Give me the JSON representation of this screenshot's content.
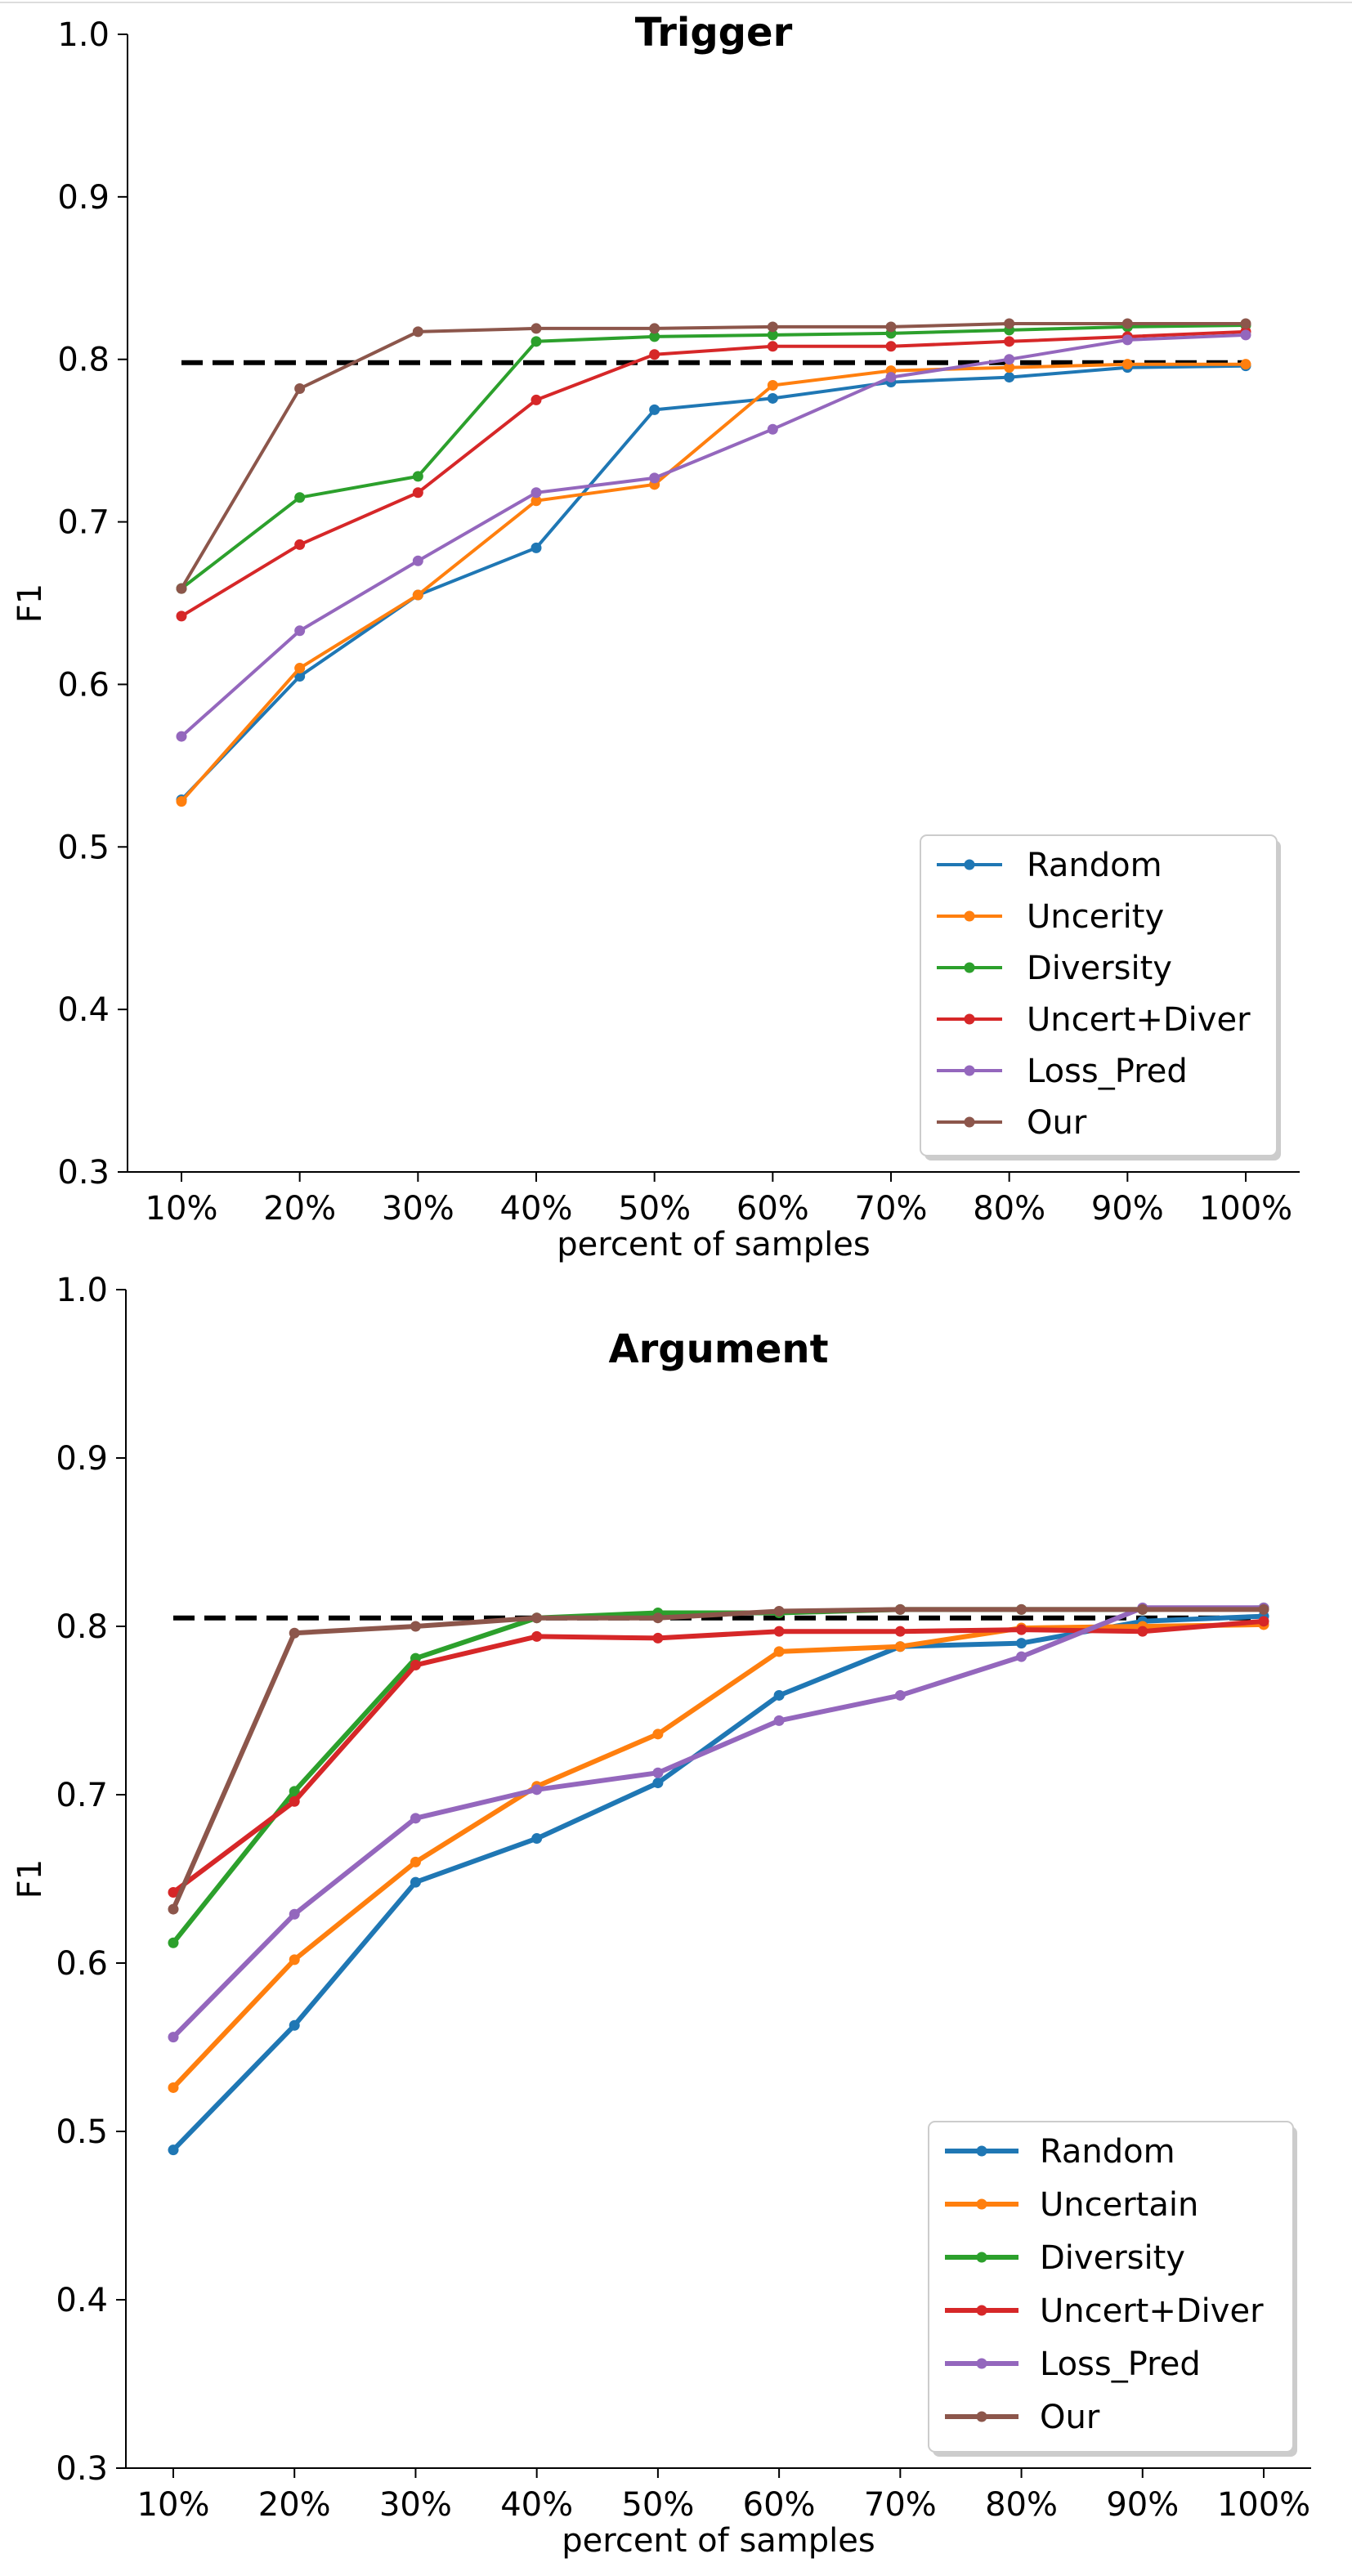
{
  "chart_data": [
    {
      "type": "line",
      "title": "Trigger",
      "xlabel": "percent of samples",
      "ylabel": "F1",
      "ylim": [
        0.3,
        1.0
      ],
      "yticks": [
        "0.3",
        "0.4",
        "0.5",
        "0.6",
        "0.7",
        "0.8",
        "0.9",
        "1.0"
      ],
      "categories": [
        "10%",
        "20%",
        "30%",
        "40%",
        "50%",
        "60%",
        "70%",
        "80%",
        "90%",
        "100%"
      ],
      "reference_line": 0.798,
      "legend_position": "lower-right",
      "series": [
        {
          "name": "Random",
          "color": "#1f77b4",
          "values": [
            0.529,
            0.605,
            0.655,
            0.684,
            0.769,
            0.776,
            0.786,
            0.789,
            0.795,
            0.796
          ]
        },
        {
          "name": "Uncerity",
          "color": "#ff7f0e",
          "values": [
            0.528,
            0.61,
            0.655,
            0.713,
            0.723,
            0.784,
            0.793,
            0.795,
            0.797,
            0.797
          ]
        },
        {
          "name": "Diversity",
          "color": "#2ca02c",
          "values": [
            0.659,
            0.715,
            0.728,
            0.811,
            0.814,
            0.815,
            0.816,
            0.818,
            0.82,
            0.821
          ]
        },
        {
          "name": "Uncert+Diver",
          "color": "#d62728",
          "values": [
            0.642,
            0.686,
            0.718,
            0.775,
            0.803,
            0.808,
            0.808,
            0.811,
            0.814,
            0.817
          ]
        },
        {
          "name": "Loss_Pred",
          "color": "#9467bd",
          "values": [
            0.568,
            0.633,
            0.676,
            0.718,
            0.727,
            0.757,
            0.789,
            0.8,
            0.812,
            0.815
          ]
        },
        {
          "name": "Our",
          "color": "#8c564b",
          "values": [
            0.659,
            0.782,
            0.817,
            0.819,
            0.819,
            0.82,
            0.82,
            0.822,
            0.822,
            0.822
          ]
        }
      ]
    },
    {
      "type": "line",
      "title": "Argument",
      "xlabel": "percent of samples",
      "ylabel": "F1",
      "ylim": [
        0.3,
        1.0
      ],
      "yticks": [
        "0.3",
        "0.4",
        "0.5",
        "0.6",
        "0.7",
        "0.8",
        "0.9",
        "1.0"
      ],
      "categories": [
        "10%",
        "20%",
        "30%",
        "40%",
        "50%",
        "60%",
        "70%",
        "80%",
        "90%",
        "100%"
      ],
      "reference_line": 0.805,
      "legend_position": "lower-right",
      "series": [
        {
          "name": "Random",
          "color": "#1f77b4",
          "values": [
            0.489,
            0.563,
            0.648,
            0.674,
            0.707,
            0.759,
            0.788,
            0.79,
            0.803,
            0.806
          ]
        },
        {
          "name": "Uncertain",
          "color": "#ff7f0e",
          "values": [
            0.526,
            0.602,
            0.66,
            0.705,
            0.736,
            0.785,
            0.788,
            0.799,
            0.8,
            0.801
          ]
        },
        {
          "name": "Diversity",
          "color": "#2ca02c",
          "values": [
            0.612,
            0.702,
            0.781,
            0.805,
            0.808,
            0.808,
            0.81,
            0.81,
            0.81,
            0.811
          ]
        },
        {
          "name": "Uncert+Diver",
          "color": "#d62728",
          "values": [
            0.642,
            0.696,
            0.777,
            0.794,
            0.793,
            0.797,
            0.797,
            0.798,
            0.797,
            0.803
          ]
        },
        {
          "name": "Loss_Pred",
          "color": "#9467bd",
          "values": [
            0.556,
            0.629,
            0.686,
            0.703,
            0.713,
            0.744,
            0.759,
            0.782,
            0.811,
            0.811
          ]
        },
        {
          "name": "Our",
          "color": "#8c564b",
          "values": [
            0.632,
            0.796,
            0.8,
            0.805,
            0.805,
            0.809,
            0.81,
            0.81,
            0.81,
            0.81
          ]
        }
      ]
    }
  ]
}
